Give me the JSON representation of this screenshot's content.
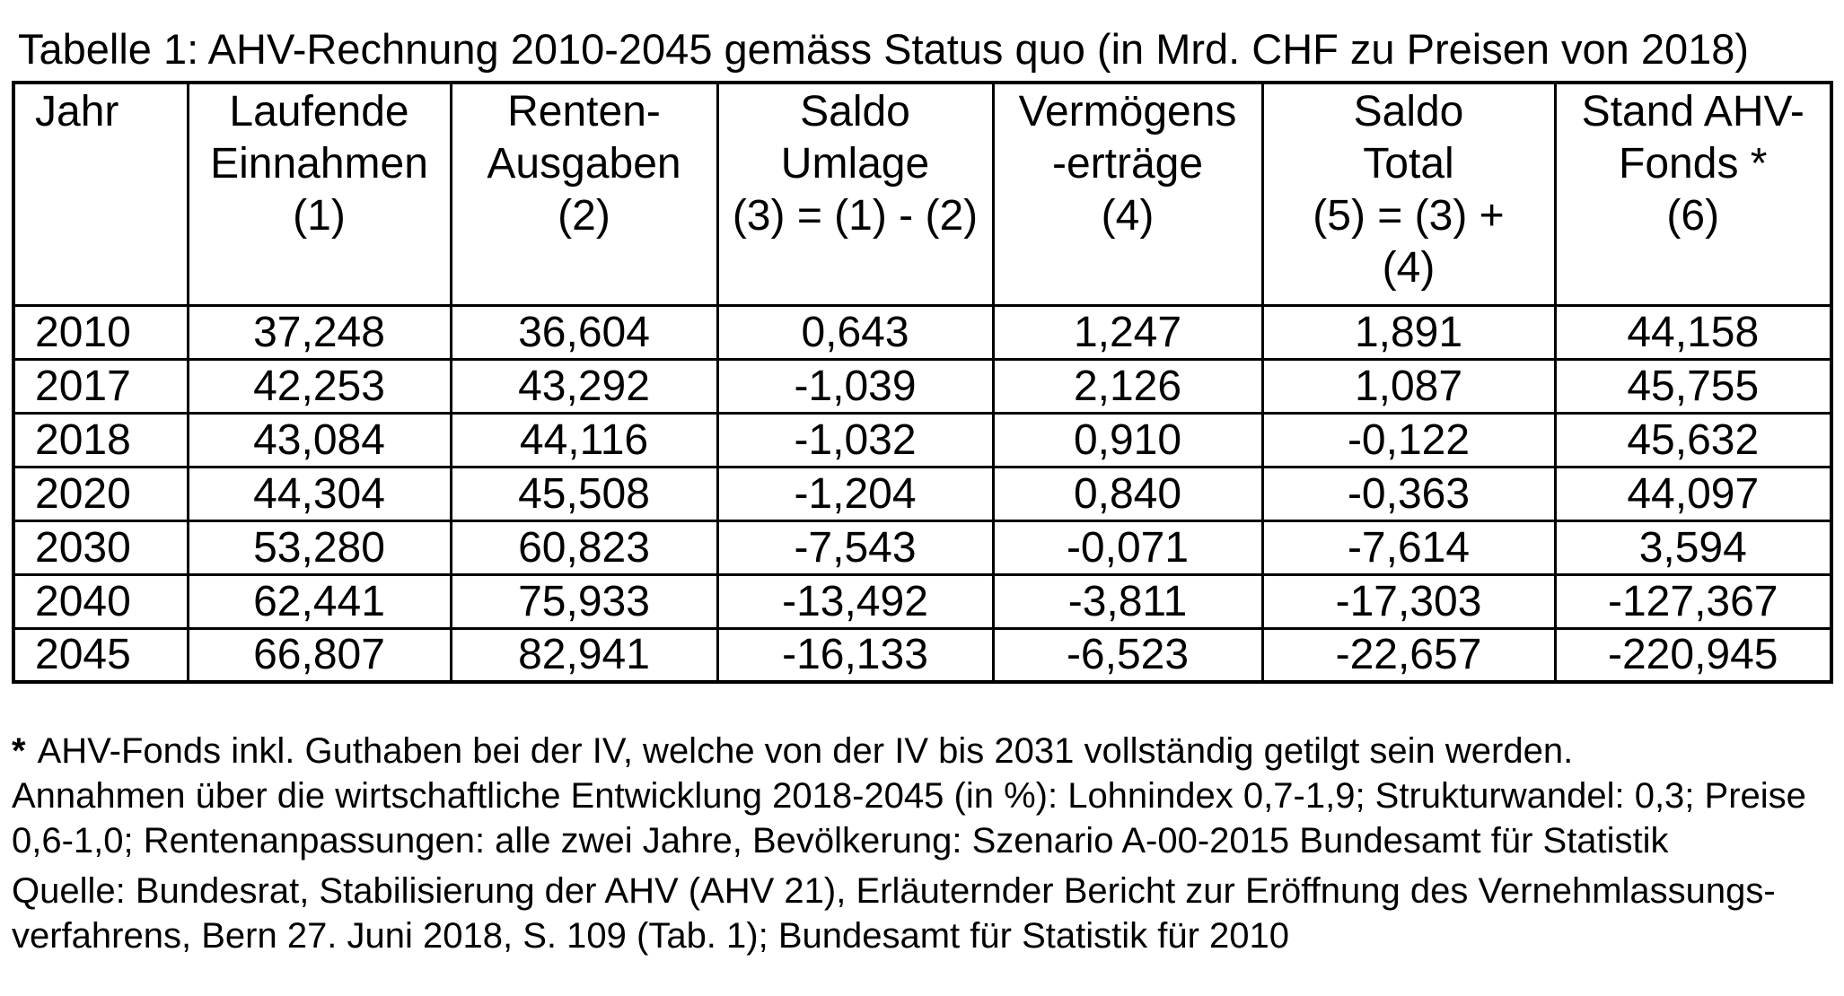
{
  "title": "Tabelle 1: AHV-Rechnung 2010-2045 gemäss Status quo (in Mrd. CHF zu Preisen von 2018)",
  "table": {
    "columns": [
      {
        "lines": [
          "Jahr"
        ]
      },
      {
        "lines": [
          "Laufende",
          "Einnahmen",
          "(1)"
        ]
      },
      {
        "lines": [
          "Renten-",
          "Ausgaben",
          "(2)"
        ]
      },
      {
        "lines": [
          "Saldo",
          "Umlage",
          "(3) = (1) - (2)"
        ]
      },
      {
        "lines": [
          "Vermögens",
          "-erträge",
          "(4)"
        ]
      },
      {
        "lines": [
          "Saldo",
          "Total",
          "(5) = (3) +",
          "(4)"
        ]
      },
      {
        "lines": [
          "Stand AHV-",
          "Fonds *",
          "(6)"
        ]
      }
    ],
    "rows": [
      [
        "2010",
        "37,248",
        "36,604",
        "0,643",
        "1,247",
        "1,891",
        "44,158"
      ],
      [
        "2017",
        "42,253",
        "43,292",
        "-1,039",
        "2,126",
        "1,087",
        "45,755"
      ],
      [
        "2018",
        "43,084",
        "44,116",
        "-1,032",
        "0,910",
        "-0,122",
        "45,632"
      ],
      [
        "2020",
        "44,304",
        "45,508",
        "-1,204",
        "0,840",
        "-0,363",
        "44,097"
      ],
      [
        "2030",
        "53,280",
        "60,823",
        "-7,543",
        "-0,071",
        "-7,614",
        "3,594"
      ],
      [
        "2040",
        "62,441",
        "75,933",
        "-13,492",
        "-3,811",
        "-17,303",
        "-127,367"
      ],
      [
        "2045",
        "66,807",
        "82,941",
        "-16,133",
        "-6,523",
        "-22,657",
        "-220,945"
      ]
    ]
  },
  "notes": {
    "asterisk": "*",
    "footnote_line1": "AHV-Fonds inkl. Guthaben bei der IV, welche von der IV bis 2031 vollständig getilgt sein werden.",
    "footnote_line2": "Annahmen über die wirtschaftliche Entwicklung 2018-2045 (in %): Lohnindex 0,7-1,9; Strukturwandel: 0,3; Preise",
    "footnote_line3": "0,6-1,0; Rentenanpassungen: alle zwei Jahre, Bevölkerung: Szenario A-00-2015 Bundesamt für Statistik",
    "source_line1": "Quelle: Bundesrat, Stabilisierung der AHV (AHV 21), Erläuternder Bericht zur Eröffnung des Vernehmlassungs-",
    "source_line2": "verfahrens, Bern 27. Juni 2018, S. 109 (Tab. 1); Bundesamt für Statistik für 2010"
  }
}
